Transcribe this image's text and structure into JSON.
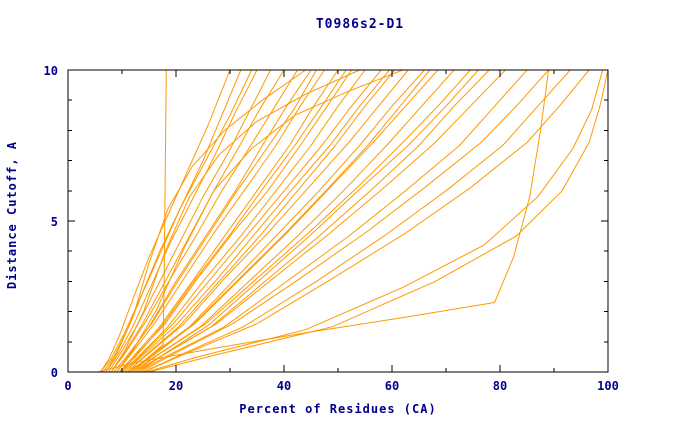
{
  "chart_data": {
    "type": "line",
    "title": "T0986s2-D1",
    "xlabel": "Percent of Residues (CA)",
    "ylabel": "Distance Cutoff, A",
    "xlim": [
      0,
      100
    ],
    "ylim": [
      0,
      10
    ],
    "grid": false,
    "legend": "none",
    "line_color": "#FF9900",
    "text_color": "#00008B",
    "axis_color": "#000000",
    "xticks_major": [
      0,
      20,
      40,
      60,
      80,
      100
    ],
    "xtick_labels": [
      "0",
      "20",
      "40",
      "60",
      "80",
      "100"
    ],
    "xticks_minor": [
      10,
      30,
      50,
      70,
      90
    ],
    "yticks_major": [
      0,
      5,
      10
    ],
    "ytick_labels": [
      "0",
      "5",
      "10"
    ],
    "yticks_minor": [
      1,
      2,
      3,
      4,
      6,
      7,
      8,
      9
    ],
    "series": [
      [
        [
          11,
          0
        ],
        [
          14,
          0.35
        ],
        [
          17.6,
          0.9
        ],
        [
          17.8,
          3
        ],
        [
          18,
          6.5
        ],
        [
          18.2,
          10
        ]
      ],
      [
        [
          6,
          0
        ],
        [
          7.5,
          0.4
        ],
        [
          9.5,
          1.2
        ],
        [
          12,
          2.4
        ],
        [
          15,
          3.8
        ],
        [
          18.5,
          5.2
        ],
        [
          22,
          6.6
        ],
        [
          26,
          8.2
        ],
        [
          30,
          10
        ]
      ],
      [
        [
          6.5,
          0
        ],
        [
          8.5,
          0.5
        ],
        [
          11,
          1.4
        ],
        [
          14,
          2.7
        ],
        [
          17.5,
          4.1
        ],
        [
          21,
          5.5
        ],
        [
          25,
          7
        ],
        [
          28.5,
          8.5
        ],
        [
          32,
          10
        ]
      ],
      [
        [
          7,
          0
        ],
        [
          9,
          0.5
        ],
        [
          12,
          1.5
        ],
        [
          15.5,
          2.9
        ],
        [
          19,
          4.3
        ],
        [
          23,
          5.7
        ],
        [
          27,
          7.1
        ],
        [
          31,
          8.6
        ],
        [
          35,
          10
        ]
      ],
      [
        [
          7.5,
          0
        ],
        [
          9.5,
          0.55
        ],
        [
          13,
          1.6
        ],
        [
          17,
          3
        ],
        [
          21,
          4.4
        ],
        [
          25,
          5.8
        ],
        [
          29.5,
          7.2
        ],
        [
          33.5,
          8.6
        ],
        [
          37.5,
          10
        ]
      ],
      [
        [
          8,
          0
        ],
        [
          10,
          0.5
        ],
        [
          13.5,
          1.5
        ],
        [
          18,
          3
        ],
        [
          22.5,
          4.5
        ],
        [
          27,
          6
        ],
        [
          31.5,
          7.4
        ],
        [
          35.5,
          8.7
        ],
        [
          40,
          10
        ]
      ],
      [
        [
          8,
          0
        ],
        [
          10.5,
          0.6
        ],
        [
          14.5,
          1.7
        ],
        [
          19,
          3.1
        ],
        [
          24,
          4.6
        ],
        [
          28.5,
          6
        ],
        [
          33.5,
          7.4
        ],
        [
          38,
          8.7
        ],
        [
          42.5,
          10
        ]
      ],
      [
        [
          9,
          0
        ],
        [
          11,
          0.5
        ],
        [
          15,
          1.5
        ],
        [
          20,
          3
        ],
        [
          25.5,
          4.5
        ],
        [
          31,
          6
        ],
        [
          36,
          7.5
        ],
        [
          40.5,
          8.8
        ],
        [
          45,
          10
        ]
      ],
      [
        [
          9,
          0
        ],
        [
          11.5,
          0.55
        ],
        [
          16,
          1.6
        ],
        [
          21.5,
          3.1
        ],
        [
          27,
          4.6
        ],
        [
          33,
          6.1
        ],
        [
          38.5,
          7.5
        ],
        [
          43,
          8.8
        ],
        [
          47.5,
          10
        ]
      ],
      [
        [
          9.5,
          0
        ],
        [
          12,
          0.5
        ],
        [
          17,
          1.5
        ],
        [
          23,
          3
        ],
        [
          29,
          4.5
        ],
        [
          35,
          6
        ],
        [
          41,
          7.5
        ],
        [
          45.5,
          8.8
        ],
        [
          50,
          10
        ]
      ],
      [
        [
          10,
          0
        ],
        [
          12.5,
          0.55
        ],
        [
          18,
          1.6
        ],
        [
          24,
          3.1
        ],
        [
          30.5,
          4.6
        ],
        [
          37,
          6
        ],
        [
          43,
          7.5
        ],
        [
          48,
          8.8
        ],
        [
          52.5,
          10
        ]
      ],
      [
        [
          10,
          0
        ],
        [
          13,
          0.5
        ],
        [
          18.5,
          1.5
        ],
        [
          25,
          3
        ],
        [
          32,
          4.5
        ],
        [
          38.5,
          6
        ],
        [
          45,
          7.5
        ],
        [
          50,
          8.8
        ],
        [
          55,
          10
        ]
      ],
      [
        [
          10.5,
          0
        ],
        [
          13.5,
          0.55
        ],
        [
          19.5,
          1.6
        ],
        [
          26.5,
          3.1
        ],
        [
          33.5,
          4.6
        ],
        [
          40.5,
          6.1
        ],
        [
          47,
          7.5
        ],
        [
          52.5,
          8.8
        ],
        [
          58,
          10
        ]
      ],
      [
        [
          11,
          0
        ],
        [
          14,
          0.5
        ],
        [
          20.5,
          1.5
        ],
        [
          28,
          3
        ],
        [
          35.5,
          4.5
        ],
        [
          42.5,
          6
        ],
        [
          49.5,
          7.5
        ],
        [
          55,
          8.8
        ],
        [
          60.5,
          10
        ]
      ],
      [
        [
          11,
          0
        ],
        [
          14.5,
          0.55
        ],
        [
          21.5,
          1.6
        ],
        [
          29,
          3.1
        ],
        [
          37,
          4.6
        ],
        [
          44.5,
          6.1
        ],
        [
          52,
          7.6
        ],
        [
          57.5,
          8.8
        ],
        [
          63,
          10
        ]
      ],
      [
        [
          11.5,
          0
        ],
        [
          15,
          0.5
        ],
        [
          22.5,
          1.5
        ],
        [
          30.5,
          3
        ],
        [
          38.5,
          4.5
        ],
        [
          46.5,
          6
        ],
        [
          54,
          7.5
        ],
        [
          60,
          8.8
        ],
        [
          66,
          10
        ]
      ],
      [
        [
          12,
          0
        ],
        [
          15.5,
          0.55
        ],
        [
          23.5,
          1.6
        ],
        [
          32,
          3.1
        ],
        [
          40.5,
          4.6
        ],
        [
          48.5,
          6.1
        ],
        [
          56.5,
          7.6
        ],
        [
          62.5,
          8.8
        ],
        [
          68.5,
          10
        ]
      ],
      [
        [
          12,
          0
        ],
        [
          16,
          0.5
        ],
        [
          24.5,
          1.5
        ],
        [
          33.5,
          3
        ],
        [
          42.5,
          4.5
        ],
        [
          51,
          6
        ],
        [
          59,
          7.5
        ],
        [
          65.5,
          8.8
        ],
        [
          71.5,
          10
        ]
      ],
      [
        [
          12.5,
          0
        ],
        [
          16.5,
          0.55
        ],
        [
          25.5,
          1.6
        ],
        [
          35,
          3.1
        ],
        [
          44.5,
          4.6
        ],
        [
          53.5,
          6.1
        ],
        [
          62,
          7.6
        ],
        [
          68.5,
          8.8
        ],
        [
          74.5,
          10
        ]
      ],
      [
        [
          12.5,
          0
        ],
        [
          17,
          0.5
        ],
        [
          26.5,
          1.5
        ],
        [
          36.5,
          3
        ],
        [
          46.5,
          4.5
        ],
        [
          56,
          6
        ],
        [
          65,
          7.5
        ],
        [
          71.5,
          8.8
        ],
        [
          78,
          10
        ]
      ],
      [
        [
          13,
          0
        ],
        [
          17.5,
          0.55
        ],
        [
          27.5,
          1.6
        ],
        [
          38,
          3.1
        ],
        [
          48.5,
          4.6
        ],
        [
          58.5,
          6.1
        ],
        [
          68,
          7.6
        ],
        [
          74.5,
          8.8
        ],
        [
          81,
          10
        ]
      ],
      [
        [
          13,
          0
        ],
        [
          18,
          0.5
        ],
        [
          29,
          1.5
        ],
        [
          40.5,
          3
        ],
        [
          52,
          4.5
        ],
        [
          62.5,
          6
        ],
        [
          72.5,
          7.5
        ],
        [
          79,
          8.8
        ],
        [
          85,
          10
        ]
      ],
      [
        [
          13.5,
          0
        ],
        [
          19,
          0.55
        ],
        [
          30.5,
          1.6
        ],
        [
          43,
          3.1
        ],
        [
          55,
          4.6
        ],
        [
          66,
          6.1
        ],
        [
          76.5,
          7.6
        ],
        [
          83,
          8.8
        ],
        [
          89,
          10
        ]
      ],
      [
        [
          14,
          0
        ],
        [
          20,
          0.5
        ],
        [
          32.5,
          1.5
        ],
        [
          46,
          3
        ],
        [
          58.5,
          4.5
        ],
        [
          70,
          6
        ],
        [
          80.5,
          7.5
        ],
        [
          87,
          8.8
        ],
        [
          93,
          10
        ]
      ],
      [
        [
          14,
          0
        ],
        [
          21,
          0.55
        ],
        [
          35,
          1.6
        ],
        [
          49,
          3.1
        ],
        [
          62.5,
          4.6
        ],
        [
          74.5,
          6.1
        ],
        [
          85,
          7.6
        ],
        [
          91,
          8.8
        ],
        [
          96.5,
          10
        ]
      ],
      [
        [
          14.5,
          0
        ],
        [
          24,
          0.5
        ],
        [
          44,
          1.4
        ],
        [
          62,
          2.8
        ],
        [
          77,
          4.2
        ],
        [
          87,
          5.8
        ],
        [
          93.5,
          7.4
        ],
        [
          97,
          8.7
        ],
        [
          99,
          10
        ]
      ],
      [
        [
          15,
          0
        ],
        [
          27,
          0.55
        ],
        [
          49,
          1.5
        ],
        [
          68,
          3
        ],
        [
          83,
          4.5
        ],
        [
          91.5,
          6
        ],
        [
          96.5,
          7.6
        ],
        [
          98.5,
          8.8
        ],
        [
          100,
          10
        ]
      ],
      [
        [
          5.5,
          0
        ],
        [
          12,
          0.3
        ],
        [
          26,
          0.75
        ],
        [
          44,
          1.3
        ],
        [
          62,
          1.8
        ],
        [
          79,
          2.3
        ],
        [
          82.5,
          3.8
        ],
        [
          85.5,
          5.8
        ],
        [
          87.5,
          8
        ],
        [
          89,
          10
        ]
      ],
      [
        [
          6,
          0
        ],
        [
          8,
          0.45
        ],
        [
          10.5,
          1.3
        ],
        [
          13.5,
          2.5
        ],
        [
          17,
          4
        ],
        [
          21,
          5.5
        ],
        [
          25.5,
          7
        ],
        [
          30,
          8.5
        ],
        [
          34,
          10
        ]
      ],
      [
        [
          8.5,
          0
        ],
        [
          11,
          0.55
        ],
        [
          15.5,
          1.6
        ],
        [
          20.5,
          3.05
        ],
        [
          26,
          4.55
        ],
        [
          31.5,
          6.05
        ],
        [
          37,
          7.45
        ],
        [
          42,
          8.75
        ],
        [
          46,
          10
        ]
      ],
      [
        [
          9.5,
          0
        ],
        [
          12.5,
          0.5
        ],
        [
          17.5,
          1.55
        ],
        [
          23.5,
          3.05
        ],
        [
          30,
          4.55
        ],
        [
          36,
          6.05
        ],
        [
          42,
          7.5
        ],
        [
          47,
          8.8
        ],
        [
          51.5,
          10
        ]
      ],
      [
        [
          10.5,
          0
        ],
        [
          13.5,
          0.5
        ],
        [
          20,
          1.55
        ],
        [
          27.5,
          3.05
        ],
        [
          34.5,
          4.55
        ],
        [
          41.5,
          6.05
        ],
        [
          48.5,
          7.5
        ],
        [
          54,
          8.8
        ],
        [
          59.5,
          10
        ]
      ],
      [
        [
          11.5,
          0
        ],
        [
          15.5,
          0.5
        ],
        [
          23,
          1.55
        ],
        [
          31.5,
          3.05
        ],
        [
          40,
          4.55
        ],
        [
          48,
          6.05
        ],
        [
          55.5,
          7.5
        ],
        [
          61.5,
          8.8
        ],
        [
          67,
          10
        ]
      ],
      [
        [
          12.5,
          0
        ],
        [
          17,
          0.5
        ],
        [
          26,
          1.55
        ],
        [
          35.5,
          3.05
        ],
        [
          45,
          4.55
        ],
        [
          54,
          6.05
        ],
        [
          63,
          7.5
        ],
        [
          70,
          8.8
        ],
        [
          76,
          10
        ]
      ],
      [
        [
          7,
          0
        ],
        [
          9,
          0.6
        ],
        [
          12,
          1.8
        ],
        [
          15,
          3.6
        ],
        [
          18.5,
          5.4
        ],
        [
          23,
          6.8
        ],
        [
          29,
          8
        ],
        [
          36,
          9
        ],
        [
          44,
          10
        ]
      ],
      [
        [
          8,
          0
        ],
        [
          10.5,
          0.7
        ],
        [
          14,
          2
        ],
        [
          18,
          4
        ],
        [
          22.5,
          5.8
        ],
        [
          28,
          7.2
        ],
        [
          35,
          8.3
        ],
        [
          44,
          9.2
        ],
        [
          54,
          10
        ]
      ],
      [
        [
          9,
          0
        ],
        [
          12,
          0.7
        ],
        [
          16.5,
          2.1
        ],
        [
          21.5,
          4.1
        ],
        [
          27,
          6
        ],
        [
          34,
          7.4
        ],
        [
          42,
          8.5
        ],
        [
          52,
          9.3
        ],
        [
          62,
          10
        ]
      ]
    ]
  }
}
